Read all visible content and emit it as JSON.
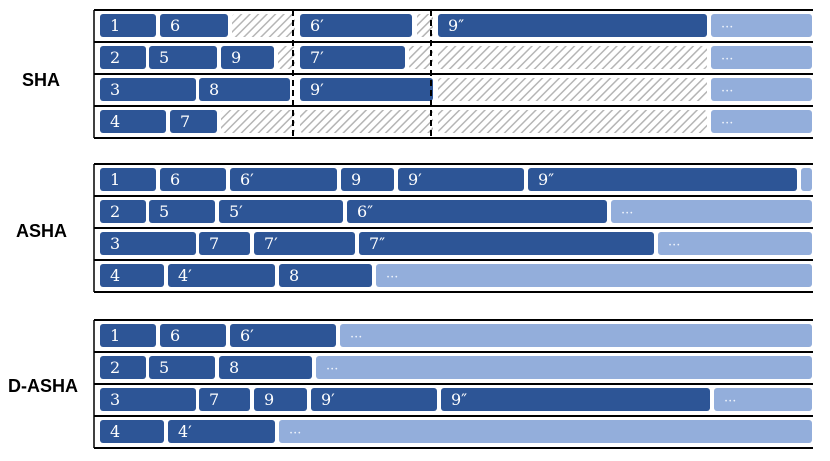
{
  "colors": {
    "job": "#2d5596",
    "pending": "#93aedb",
    "idle_hatch": "#b5b5b5",
    "line": "#000000",
    "job_text": "#ffffff"
  },
  "schedules": [
    {
      "name": "SHA",
      "lanes": [
        [
          {
            "label": "1",
            "kind": "job",
            "start": 0,
            "end": 56
          },
          {
            "label": "6",
            "kind": "job",
            "start": 60,
            "end": 128
          },
          {
            "kind": "idle",
            "start": 132,
            "end": 195
          },
          {
            "label": "6′",
            "kind": "job",
            "start": 200,
            "end": 312
          },
          {
            "kind": "idle",
            "start": 317,
            "end": 333
          },
          {
            "label": "9″",
            "kind": "job",
            "start": 338,
            "end": 607
          },
          {
            "label": "···",
            "kind": "pending",
            "start": 611,
            "end": 712
          }
        ],
        [
          {
            "label": "2",
            "kind": "job",
            "start": 0,
            "end": 46
          },
          {
            "label": "5",
            "kind": "job",
            "start": 49,
            "end": 117
          },
          {
            "label": "9",
            "kind": "job",
            "start": 121,
            "end": 174
          },
          {
            "kind": "idle",
            "start": 178,
            "end": 195
          },
          {
            "label": "7′",
            "kind": "job",
            "start": 200,
            "end": 305
          },
          {
            "kind": "idle",
            "start": 309,
            "end": 333
          },
          {
            "kind": "idle",
            "start": 338,
            "end": 607
          },
          {
            "label": "···",
            "kind": "pending",
            "start": 611,
            "end": 712
          }
        ],
        [
          {
            "label": "3",
            "kind": "job",
            "start": 0,
            "end": 96
          },
          {
            "label": "8",
            "kind": "job",
            "start": 99,
            "end": 190
          },
          {
            "label": "9′",
            "kind": "job",
            "start": 200,
            "end": 333
          },
          {
            "kind": "idle",
            "start": 338,
            "end": 607
          },
          {
            "label": "···",
            "kind": "pending",
            "start": 611,
            "end": 712
          }
        ],
        [
          {
            "label": "4",
            "kind": "job",
            "start": 0,
            "end": 66
          },
          {
            "label": "7",
            "kind": "job",
            "start": 70,
            "end": 117
          },
          {
            "kind": "idle",
            "start": 121,
            "end": 195
          },
          {
            "kind": "idle",
            "start": 200,
            "end": 333
          },
          {
            "kind": "idle",
            "start": 338,
            "end": 607
          },
          {
            "label": "···",
            "kind": "pending",
            "start": 611,
            "end": 712
          }
        ]
      ],
      "sync_points": [
        195,
        333
      ]
    },
    {
      "name": "ASHA",
      "lanes": [
        [
          {
            "label": "1",
            "kind": "job",
            "start": 0,
            "end": 56
          },
          {
            "label": "6",
            "kind": "job",
            "start": 60,
            "end": 126
          },
          {
            "label": "6′",
            "kind": "job",
            "start": 130,
            "end": 237
          },
          {
            "label": "9",
            "kind": "job",
            "start": 241,
            "end": 294
          },
          {
            "label": "9′",
            "kind": "job",
            "start": 298,
            "end": 424
          },
          {
            "label": "9″",
            "kind": "job",
            "start": 428,
            "end": 697
          },
          {
            "label": "···",
            "kind": "pending",
            "start": 701,
            "end": 712
          }
        ],
        [
          {
            "label": "2",
            "kind": "job",
            "start": 0,
            "end": 46
          },
          {
            "label": "5",
            "kind": "job",
            "start": 49,
            "end": 115
          },
          {
            "label": "5′",
            "kind": "job",
            "start": 119,
            "end": 243
          },
          {
            "label": "6″",
            "kind": "job",
            "start": 247,
            "end": 507
          },
          {
            "label": "···",
            "kind": "pending",
            "start": 511,
            "end": 712
          }
        ],
        [
          {
            "label": "3",
            "kind": "job",
            "start": 0,
            "end": 96
          },
          {
            "label": "7",
            "kind": "job",
            "start": 99,
            "end": 150
          },
          {
            "label": "7′",
            "kind": "job",
            "start": 154,
            "end": 255
          },
          {
            "label": "7″",
            "kind": "job",
            "start": 259,
            "end": 554
          },
          {
            "label": "···",
            "kind": "pending",
            "start": 558,
            "end": 712
          }
        ],
        [
          {
            "label": "4",
            "kind": "job",
            "start": 0,
            "end": 64
          },
          {
            "label": "4′",
            "kind": "job",
            "start": 68,
            "end": 175
          },
          {
            "label": "8",
            "kind": "job",
            "start": 179,
            "end": 272
          },
          {
            "label": "···",
            "kind": "pending",
            "start": 276,
            "end": 712
          }
        ]
      ],
      "sync_points": []
    },
    {
      "name": "D-ASHA",
      "lanes": [
        [
          {
            "label": "1",
            "kind": "job",
            "start": 0,
            "end": 56
          },
          {
            "label": "6",
            "kind": "job",
            "start": 60,
            "end": 126
          },
          {
            "label": "6′",
            "kind": "job",
            "start": 130,
            "end": 236
          },
          {
            "label": "···",
            "kind": "pending",
            "start": 240,
            "end": 712
          }
        ],
        [
          {
            "label": "2",
            "kind": "job",
            "start": 0,
            "end": 46
          },
          {
            "label": "5",
            "kind": "job",
            "start": 49,
            "end": 115
          },
          {
            "label": "8",
            "kind": "job",
            "start": 119,
            "end": 212
          },
          {
            "label": "···",
            "kind": "pending",
            "start": 216,
            "end": 712
          }
        ],
        [
          {
            "label": "3",
            "kind": "job",
            "start": 0,
            "end": 96
          },
          {
            "label": "7",
            "kind": "job",
            "start": 99,
            "end": 150
          },
          {
            "label": "9",
            "kind": "job",
            "start": 154,
            "end": 207
          },
          {
            "label": "9′",
            "kind": "job",
            "start": 211,
            "end": 337
          },
          {
            "label": "9″",
            "kind": "job",
            "start": 341,
            "end": 610
          },
          {
            "label": "···",
            "kind": "pending",
            "start": 614,
            "end": 712
          }
        ],
        [
          {
            "label": "4",
            "kind": "job",
            "start": 0,
            "end": 64
          },
          {
            "label": "4′",
            "kind": "job",
            "start": 68,
            "end": 175
          },
          {
            "label": "···",
            "kind": "pending",
            "start": 179,
            "end": 712
          }
        ]
      ],
      "sync_points": []
    }
  ]
}
